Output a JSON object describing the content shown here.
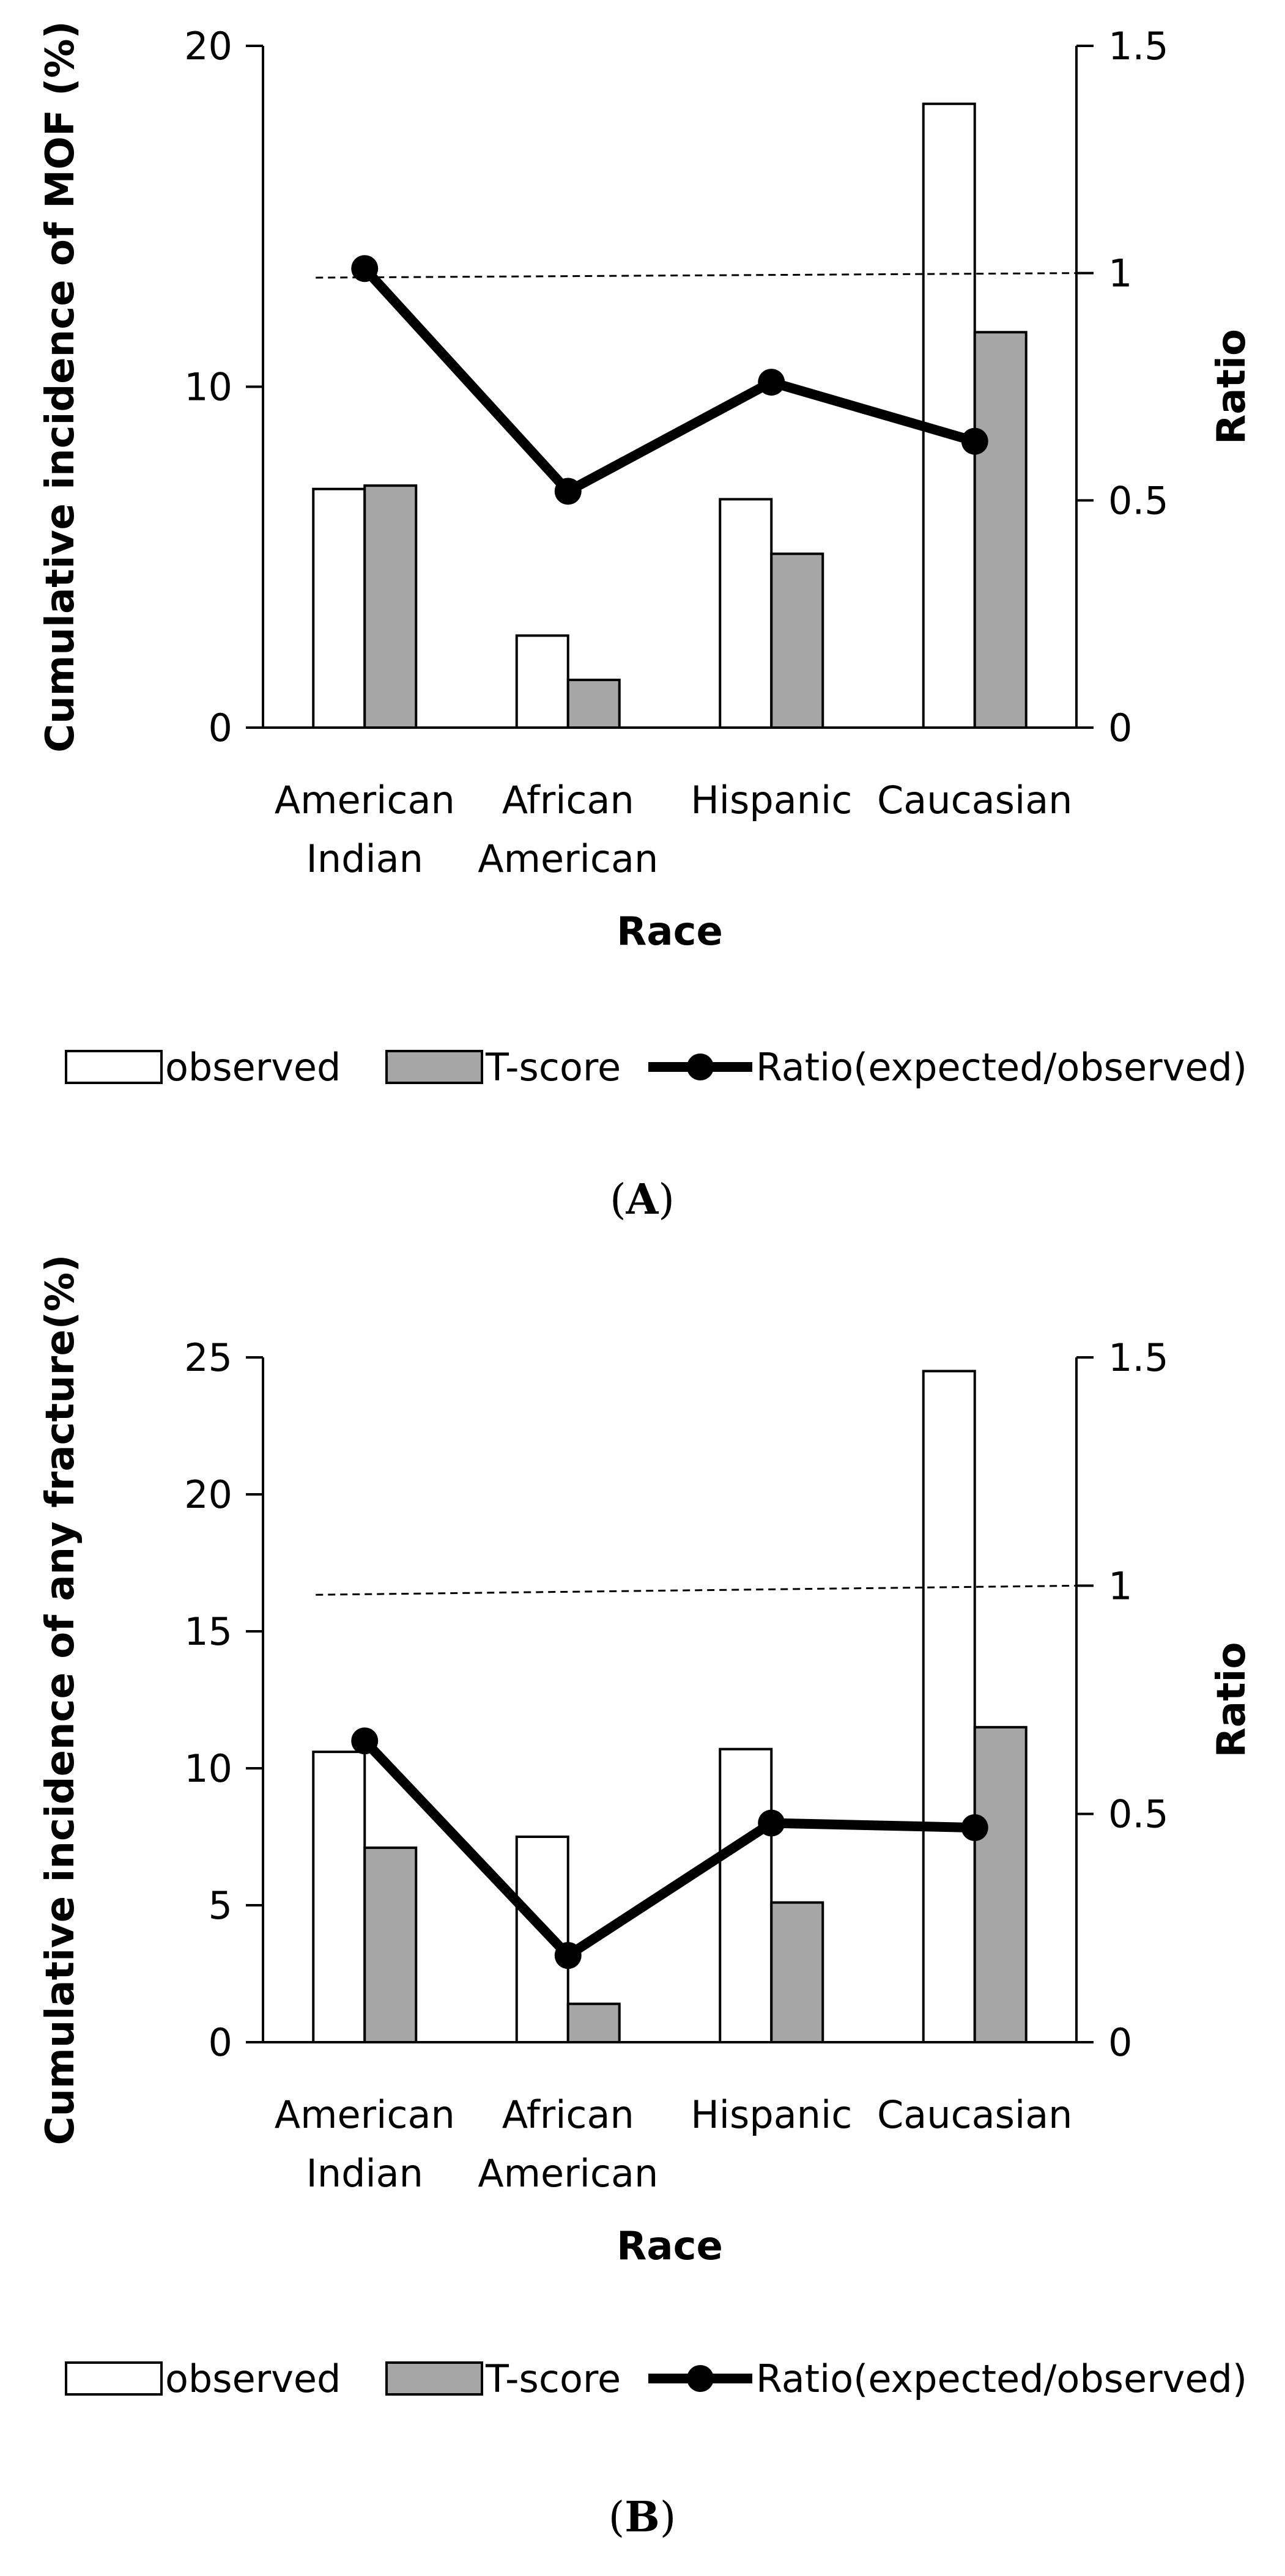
{
  "colors": {
    "observed_fill": "#ffffff",
    "tscore_fill": "#a6a6a6",
    "bar_stroke": "#000000",
    "ratio_line": "#000000",
    "reference_line": "#000000"
  },
  "legend": {
    "observed": "observed",
    "tscore": "T-score",
    "ratio": "Ratio(expected/observed)"
  },
  "chart_data": [
    {
      "panel": "A",
      "panel_label": {
        "open": "(",
        "letter": "A",
        "close": ")"
      },
      "type": "bar",
      "categories": [
        [
          "American",
          "Indian"
        ],
        [
          "African",
          "American"
        ],
        [
          "Hispanic"
        ],
        [
          "Caucasian"
        ]
      ],
      "xlabel": "Race",
      "ylabel": "Cumulative incidence of MOF (%)",
      "y2label": "Ratio",
      "ylim": [
        0,
        20
      ],
      "yticks": [
        0,
        10,
        20
      ],
      "y2lim": [
        0,
        1.5
      ],
      "y2ticks": [
        0,
        0.5,
        1,
        1.5
      ],
      "series": [
        {
          "name": "observed",
          "values": [
            7.0,
            2.7,
            6.7,
            18.3
          ]
        },
        {
          "name": "T-score",
          "values": [
            7.1,
            1.4,
            5.1,
            11.6
          ]
        }
      ],
      "ratio": {
        "name": "Ratio(expected/observed)",
        "values": [
          1.01,
          0.52,
          0.76,
          0.63
        ]
      },
      "reference_line": {
        "value": 1,
        "start_value": 0.99,
        "style": "dashed"
      }
    },
    {
      "panel": "B",
      "panel_label": {
        "open": "(",
        "letter": "B",
        "close": ")"
      },
      "type": "bar",
      "categories": [
        [
          "American",
          "Indian"
        ],
        [
          "African",
          "American"
        ],
        [
          "Hispanic"
        ],
        [
          "Caucasian"
        ]
      ],
      "xlabel": "Race",
      "ylabel": "Cumulative incidence of any fracture(%)",
      "y2label": "Ratio",
      "ylim": [
        0,
        25
      ],
      "yticks": [
        0,
        5,
        10,
        15,
        20,
        25
      ],
      "y2lim": [
        0,
        1.5
      ],
      "y2ticks": [
        0,
        0.5,
        1,
        1.5
      ],
      "series": [
        {
          "name": "observed",
          "values": [
            10.6,
            7.5,
            10.7,
            24.5
          ]
        },
        {
          "name": "T-score",
          "values": [
            7.1,
            1.4,
            5.1,
            11.5
          ]
        }
      ],
      "ratio": {
        "name": "Ratio(expected/observed)",
        "values": [
          0.66,
          0.19,
          0.48,
          0.47
        ]
      },
      "reference_line": {
        "value": 1,
        "start_value": 0.98,
        "style": "dashed"
      }
    }
  ]
}
